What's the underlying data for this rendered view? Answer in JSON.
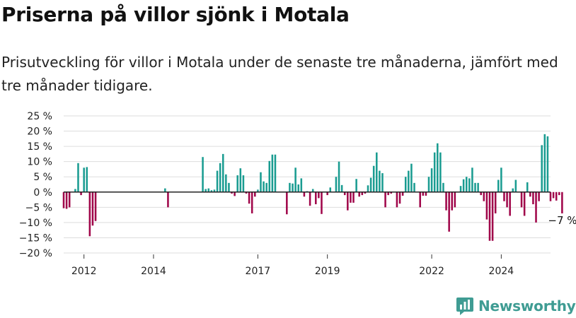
{
  "header": {
    "title": "Priserna på villor sjönk i Motala",
    "subtitle": "Prisutveckling för villor i Motala under de senaste tre månaderna, jämfört med tre månader tidigare."
  },
  "brand": {
    "name": "Newsworthy",
    "logo_icon": "bar-chart-logo-icon"
  },
  "colors": {
    "positive": "#1a9c91",
    "negative": "#a0064a",
    "grid": "#dddddd",
    "axis": "#222222"
  },
  "chart_data": {
    "type": "bar",
    "x_start": "2011-06",
    "x_end": "2025-06",
    "x_ticks": [
      "2012",
      "2014",
      "2017",
      "2019",
      "2022",
      "2024"
    ],
    "y_ticks": [
      "25 %",
      "20 %",
      "15 %",
      "10 %",
      "5 %",
      "0 %",
      "−5 %",
      "−10 %",
      "−15 %",
      "−20 %"
    ],
    "ylim": [
      -20,
      25
    ],
    "grid": true,
    "values": [
      -5.3,
      -5.5,
      -5,
      0,
      1,
      9.5,
      -1,
      8,
      8.2,
      -14.5,
      -11,
      -9.5,
      null,
      null,
      null,
      null,
      null,
      null,
      null,
      null,
      null,
      null,
      null,
      null,
      null,
      null,
      null,
      null,
      null,
      null,
      null,
      null,
      null,
      null,
      null,
      1.2,
      -5,
      null,
      null,
      null,
      null,
      null,
      null,
      null,
      null,
      null,
      null,
      null,
      11.5,
      1,
      1.2,
      0.6,
      0.8,
      7,
      9.5,
      12.5,
      5.8,
      3,
      -0.5,
      -1.3,
      5.5,
      7.8,
      5.5,
      -0.5,
      -3.8,
      -7,
      -1.5,
      0.8,
      6.5,
      3.5,
      3,
      10.2,
      12.3,
      12.3,
      null,
      null,
      null,
      -7.3,
      3,
      2.8,
      8,
      2.5,
      4.5,
      -1.5,
      0.3,
      -4.5,
      1,
      -4,
      -2,
      -7.2,
      null,
      -1,
      1.5,
      null,
      5,
      10,
      2.3,
      -1,
      -6,
      -3.5,
      -3.5,
      4.3,
      -1.5,
      -1,
      -0.5,
      2.2,
      4.7,
      8.6,
      13,
      7,
      6.2,
      -5,
      -1,
      -0.5,
      null,
      -5,
      -3.8,
      -1.2,
      5,
      7,
      9.3,
      3,
      null,
      -5,
      -1.2,
      -1.2,
      5,
      7.8,
      13,
      16,
      13,
      3,
      -6,
      -13,
      -6,
      -5,
      null,
      2,
      4.2,
      5,
      4.5,
      8,
      3,
      3,
      -1,
      -3,
      -9,
      -16,
      -16,
      -7,
      4,
      8,
      -3,
      -5,
      -7.8,
      1.2,
      4,
      null,
      -5,
      -7.8,
      3.2,
      -1.5,
      -4,
      -10,
      -3,
      15.4,
      19,
      18.3,
      -3,
      -2,
      -2.8,
      -1,
      -7,
      null,
      null,
      null,
      null,
      null,
      null,
      null
    ],
    "last_label": "−7 %"
  }
}
